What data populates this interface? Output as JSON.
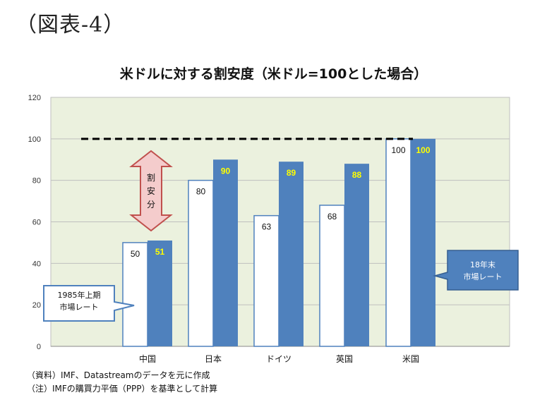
{
  "figure_label": "（図表-4）",
  "chart_data": {
    "type": "bar",
    "title": "米ドルに対する割安度（米ドル=100とした場合）",
    "categories": [
      "中国",
      "日本",
      "ドイツ",
      "英国",
      "米国"
    ],
    "series": [
      {
        "name": "1985年上期市場レート",
        "values": [
          50,
          80,
          63,
          68,
          100
        ],
        "color": "#ffffff"
      },
      {
        "name": "18年末市場レート",
        "values": [
          51,
          90,
          89,
          88,
          100
        ],
        "color": "#4f81bd"
      }
    ],
    "reference_line": 100,
    "yticks": [
      "0",
      "20",
      "40",
      "60",
      "80",
      "100",
      "120"
    ],
    "ylim": [
      0,
      120
    ],
    "grid": true,
    "plot_bg": "#ebf1de",
    "arrow_label": "割安分",
    "callouts": [
      {
        "lines": [
          "1985年上期",
          "市場レート"
        ]
      },
      {
        "lines": [
          "18年末",
          "市場レート"
        ]
      }
    ]
  },
  "notes": [
    "（資料）IMF、Datastreamのデータを元に作成",
    "（注）IMFの購買力平価（PPP）を基準として計算"
  ]
}
